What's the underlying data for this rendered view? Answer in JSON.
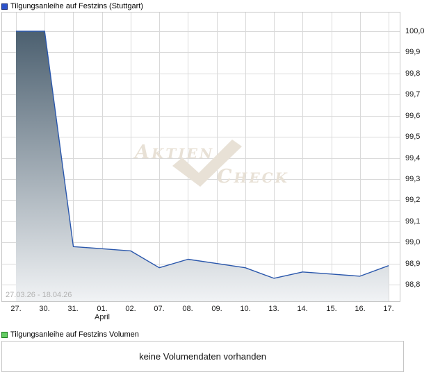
{
  "price_legend": {
    "label": "Tilgungsanleihe auf Festzins (Stuttgart)",
    "swatch_color": "#2b52cc"
  },
  "volume_legend": {
    "label": "Tilgungsanleihe auf Festzins Volumen",
    "swatch_color": "#63cc63"
  },
  "volume_panel": {
    "message": "keine Volumendaten vorhanden"
  },
  "watermark": {
    "word1": "AKTIEN",
    "word2": "CHECK"
  },
  "chart_data": {
    "type": "area",
    "title": "Tilgungsanleihe auf Festzins (Stuttgart)",
    "x_labels": [
      "27.",
      "30.",
      "31.",
      "01.",
      "02.",
      "07.",
      "08.",
      "09.",
      "10.",
      "13.",
      "14.",
      "15.",
      "16.",
      "17."
    ],
    "x_month_label": {
      "index": 3,
      "text": "April"
    },
    "values": [
      100.0,
      100.0,
      98.98,
      98.97,
      98.96,
      98.88,
      98.92,
      98.9,
      98.88,
      98.83,
      98.86,
      98.85,
      98.84,
      98.89
    ],
    "y_tick_labels": [
      "100,0",
      "99,9",
      "99,8",
      "99,7",
      "99,6",
      "99,5",
      "99,4",
      "99,3",
      "99,2",
      "99,1",
      "99,0",
      "98,9",
      "98,8"
    ],
    "y_tick_values": [
      100.0,
      99.9,
      99.8,
      99.7,
      99.6,
      99.5,
      99.4,
      99.3,
      99.2,
      99.1,
      99.0,
      98.9,
      98.8
    ],
    "ylim": [
      98.72,
      100.09
    ],
    "date_range": "27.03.26 - 18.04.26",
    "grid": true,
    "legend_position": "top-left",
    "line_color": "#2a57ac",
    "fill_gradient_top": "#4c6070",
    "fill_gradient_bottom": "#f1f3f5",
    "grid_color": "#d9d9d9",
    "border_color": "#c6c6c6"
  }
}
